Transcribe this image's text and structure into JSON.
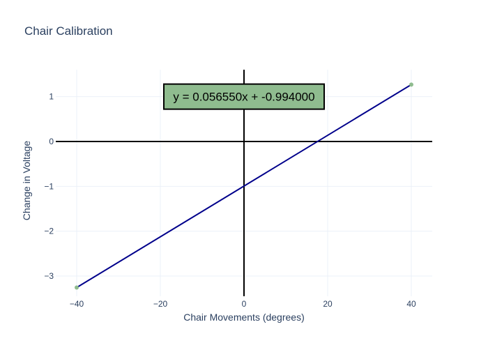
{
  "chart_data": {
    "type": "scatter",
    "title": "Chair Calibration",
    "xlabel": "Chair Movements (degrees)",
    "ylabel": "Change in Voltage",
    "xlim": [
      -45,
      45
    ],
    "ylim": [
      -3.45,
      1.6
    ],
    "x_ticks": [
      -40,
      -20,
      0,
      20,
      40
    ],
    "y_ticks": [
      -3,
      -2,
      -1,
      0,
      1
    ],
    "x_tick_labels": [
      "−40",
      "−20",
      "0",
      "20",
      "40"
    ],
    "y_tick_labels": [
      "−3",
      "−2",
      "−1",
      "0",
      "1"
    ],
    "grid": true,
    "zero_lines": true,
    "series": [
      {
        "mode": "markers",
        "color": "#8fbc8f",
        "x": [
          -40,
          40
        ],
        "y": [
          -3.256,
          1.268
        ]
      },
      {
        "mode": "line",
        "color": "#00008b",
        "x": [
          -40,
          40
        ],
        "y": [
          -3.256,
          1.268
        ]
      }
    ],
    "annotation": {
      "text": "y = 0.056550x + -0.994000",
      "x": 0,
      "y": 1,
      "background": "#8fbc8f",
      "border": "#000000"
    }
  },
  "colors": {
    "title": "#2a3f5f",
    "axis_text": "#2a3f5f",
    "grid": "#ebf0f8",
    "zero_line": "#000000"
  }
}
